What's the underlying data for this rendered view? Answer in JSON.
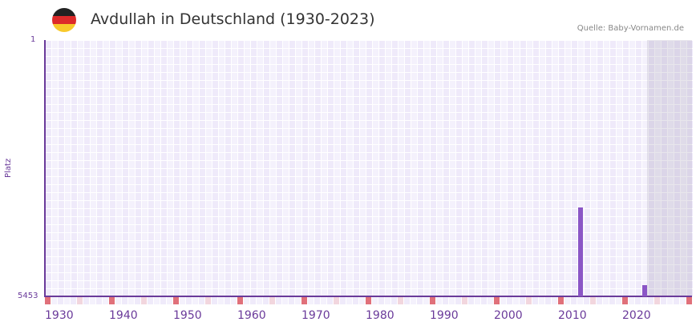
{
  "header": {
    "title": "Avdullah in Deutschland (1930-2023)",
    "source": "Quelle: Baby-Vornamen.de",
    "flag_colors": [
      "#222222",
      "#dd2a2a",
      "#f8c92b"
    ]
  },
  "colors": {
    "axis": "#6a3a9a",
    "bar": "#8b56c6",
    "marker_decade": "#e0707a",
    "marker_half": "#f2d6de",
    "grid_a": "#efeafa",
    "grid_b": "#f4f1fc",
    "future_shade": "#e2dfeb"
  },
  "chart_data": {
    "type": "bar",
    "title": "Avdullah in Deutschland (1930-2023)",
    "xlabel": "",
    "ylabel": "Platz",
    "y_inverted": true,
    "ylim": [
      1,
      5453
    ],
    "xlim": [
      1930,
      2030
    ],
    "y_ticks": [
      "1",
      "5453"
    ],
    "x_ticks": [
      "1930",
      "1940",
      "1950",
      "1960",
      "1970",
      "1980",
      "1990",
      "2000",
      "2010",
      "2020"
    ],
    "grid": true,
    "legend": null,
    "annotations": [
      "Quelle: Baby-Vornamen.de"
    ],
    "future_shaded_from": 2024,
    "x": [
      2013,
      2023
    ],
    "values": [
      3560,
      5220
    ]
  }
}
